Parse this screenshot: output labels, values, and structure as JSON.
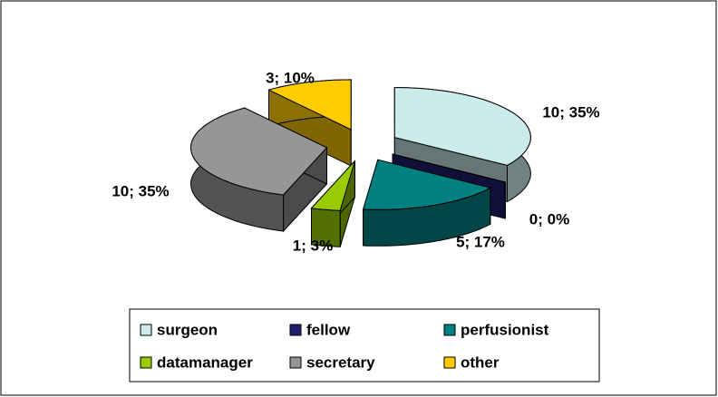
{
  "chart_data": {
    "type": "pie",
    "categories": [
      "surgeon",
      "fellow",
      "perfusionist",
      "datamanager",
      "secretary",
      "other"
    ],
    "values": [
      10,
      0,
      5,
      1,
      10,
      3
    ],
    "value_labels": [
      "10; 35%",
      "0; 0%",
      "5; 17%",
      "1; 3%",
      "10; 35%",
      "3; 10%"
    ],
    "colors": [
      "#ccecec",
      "#1f1f70",
      "#008080",
      "#99cc00",
      "#969696",
      "#ffcc00"
    ],
    "legend": "bottom"
  }
}
